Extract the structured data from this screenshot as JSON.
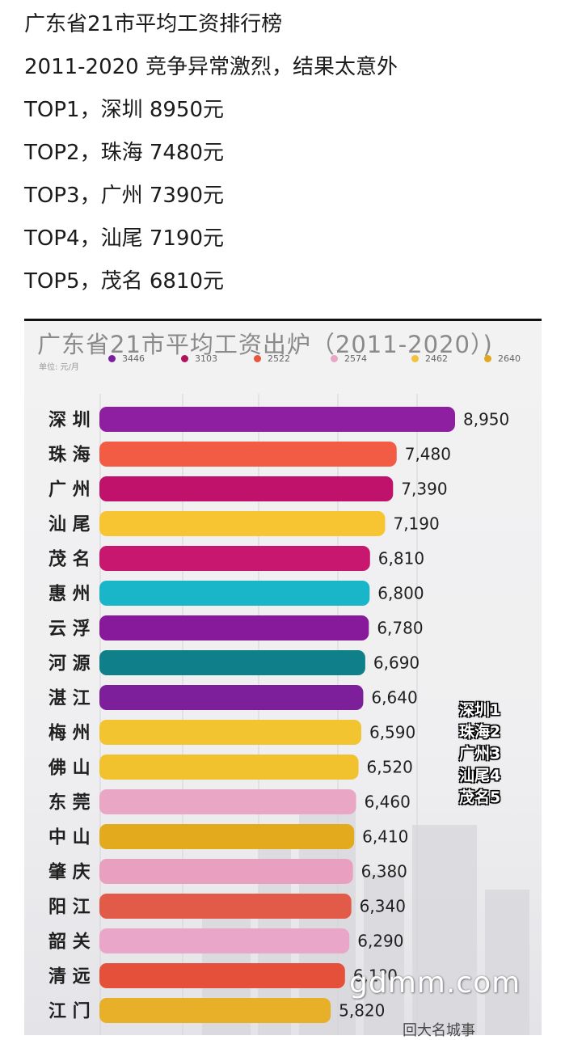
{
  "post": {
    "lines": [
      "广东省21市平均工资排行榜",
      "2011-2020 竞争异常激烈，结果太意外",
      "TOP1，深圳 8950元",
      "TOP2，珠海 7480元",
      "TOP3，广州 7390元",
      "TOP4，汕尾 7190元",
      "TOP5，茂名 6810元"
    ]
  },
  "chart_data": {
    "type": "bar",
    "orientation": "horizontal",
    "title": "广东省21市平均工资出炉（2011-2020）)",
    "unit": "单位: 元/月",
    "legend": [
      {
        "label": "3446",
        "color": "#7b1fa2"
      },
      {
        "label": "3103",
        "color": "#b0125b"
      },
      {
        "label": "2522",
        "color": "#e8553e"
      },
      {
        "label": "2574",
        "color": "#e8a6c4"
      },
      {
        "label": "2462",
        "color": "#f2c23a"
      },
      {
        "label": "2640",
        "color": "#e0a81e"
      }
    ],
    "categories": [
      "深 圳",
      "珠 海",
      "广 州",
      "汕 尾",
      "茂 名",
      "惠 州",
      "云 浮",
      "河 源",
      "湛 江",
      "梅 州",
      "佛 山",
      "东 莞",
      "中 山",
      "肇 庆",
      "阳 江",
      "韶 关",
      "清 远",
      "江 门"
    ],
    "values": [
      8950,
      7480,
      7390,
      7190,
      6810,
      6800,
      6780,
      6690,
      6640,
      6590,
      6520,
      6460,
      6410,
      6380,
      6340,
      6290,
      6180,
      5820
    ],
    "value_labels": [
      "8,950",
      "7,480",
      "7,390",
      "7,190",
      "6,810",
      "6,800",
      "6,780",
      "6,690",
      "6,640",
      "6,590",
      "6,520",
      "6,460",
      "6,410",
      "6,380",
      "6,340",
      "6,290",
      "6,1?0",
      "5,820"
    ],
    "colors": [
      "#8e1fa0",
      "#f25c45",
      "#c1126b",
      "#f6c531",
      "#c8176f",
      "#19b5c9",
      "#861a9a",
      "#0f7f8a",
      "#7d1f9a",
      "#f2c42f",
      "#f1c22e",
      "#eaa7c5",
      "#e2aa1c",
      "#e9a0c0",
      "#e25b48",
      "#e9a6c8",
      "#e5503a",
      "#e8b028"
    ],
    "xlim": [
      0,
      8950
    ],
    "grid": true,
    "side_annotation": [
      "深圳1",
      "珠海2",
      "广州3",
      "汕尾4",
      "茂名5"
    ]
  },
  "watermark": "gdmm.com",
  "footer_text": "回大名城事"
}
